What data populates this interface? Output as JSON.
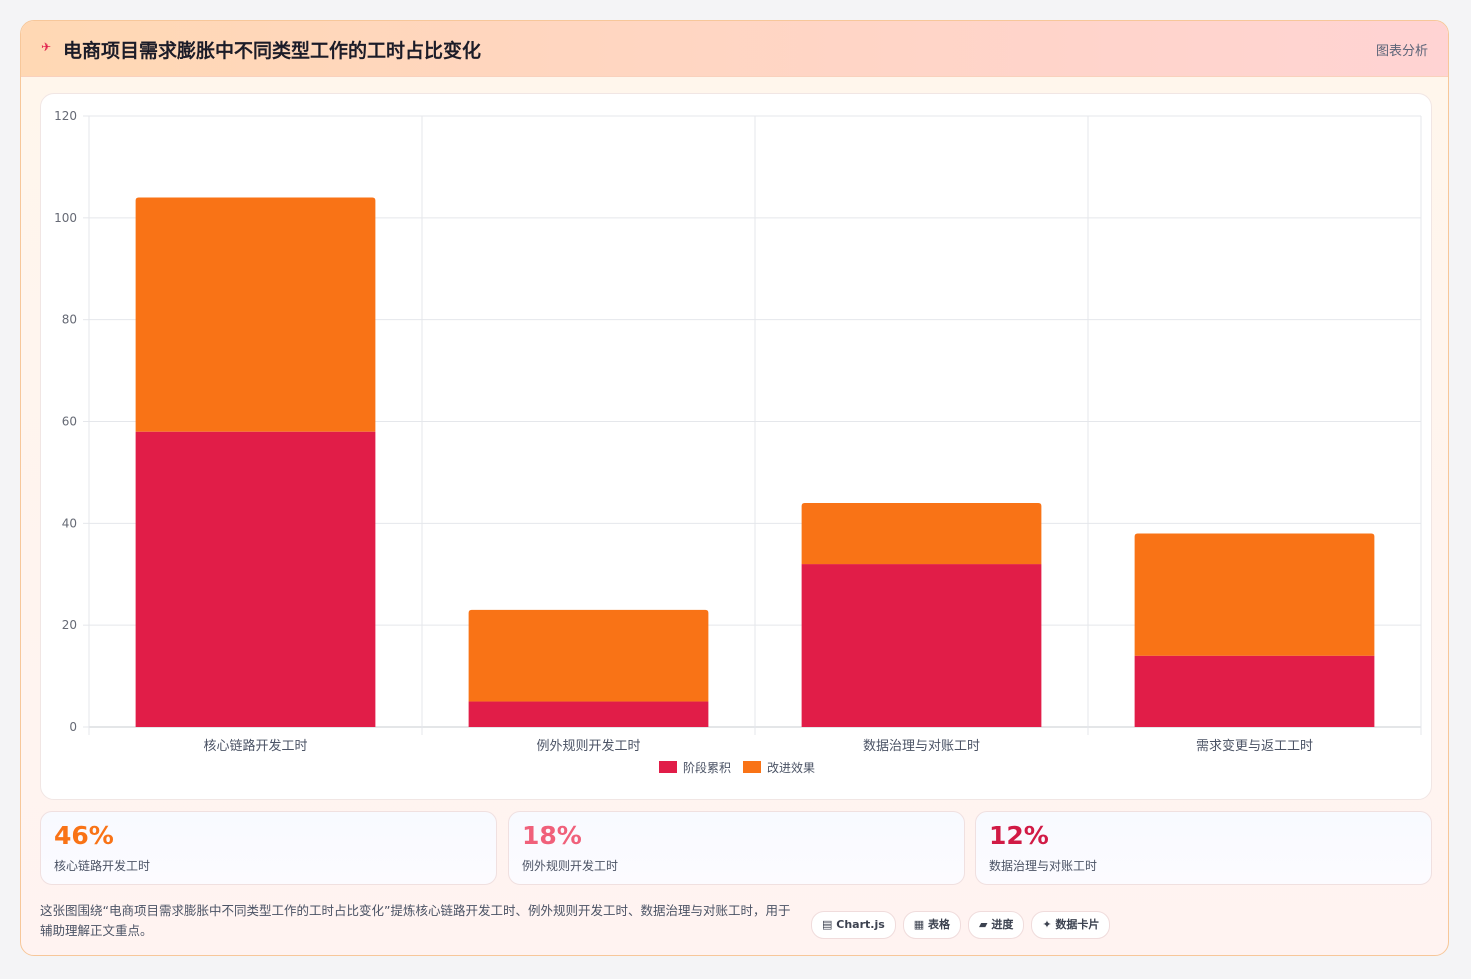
{
  "header": {
    "icon": "plane-icon",
    "title": "电商项目需求膨胀中不同类型工作的工时占比变化",
    "tag": "图表分析"
  },
  "chart_data": {
    "type": "bar",
    "stacked": true,
    "categories": [
      "核心链路开发工时",
      "例外规则开发工时",
      "数据治理与对账工时",
      "需求变更与返工工时"
    ],
    "series": [
      {
        "name": "阶段累积",
        "values": [
          58,
          5,
          32,
          14
        ],
        "color": "#e11d48"
      },
      {
        "name": "改进效果",
        "values": [
          46,
          18,
          12,
          24
        ],
        "color": "#f97316"
      }
    ],
    "ylim": [
      0,
      120
    ],
    "yticks": [
      0,
      20,
      40,
      60,
      80,
      100,
      120
    ],
    "grid": true,
    "legend_position": "bottom"
  },
  "stats": [
    {
      "value": "46%",
      "label": "核心链路开发工时",
      "color": "#f97316"
    },
    {
      "value": "18%",
      "label": "例外规则开发工时",
      "color": "#f0607a"
    },
    {
      "value": "12%",
      "label": "数据治理与对账工时",
      "color": "#d11a45"
    }
  ],
  "footer": {
    "description": "这张图围绕“电商项目需求膨胀中不同类型工作的工时占比变化”提炼核心链路开发工时、例外规则开发工时、数据治理与对账工时，用于辅助理解正文重点。",
    "badges": [
      {
        "icon": "chart-icon",
        "glyph": "▤",
        "label": "Chart.js"
      },
      {
        "icon": "table-icon",
        "glyph": "▦",
        "label": "表格"
      },
      {
        "icon": "progress-icon",
        "glyph": "▰",
        "label": "进度"
      },
      {
        "icon": "sparkle-icon",
        "glyph": "✦",
        "label": "数据卡片"
      }
    ]
  }
}
